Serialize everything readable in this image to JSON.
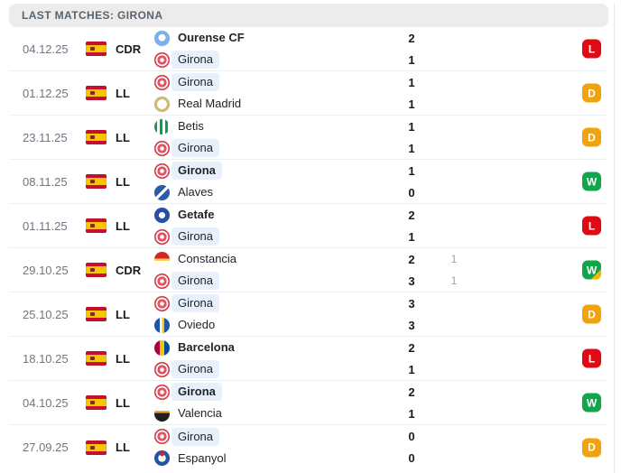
{
  "header": {
    "title": "LAST MATCHES: GIRONA"
  },
  "colors": {
    "win_badge": "#11a64a",
    "draw_badge": "#f0a30b",
    "loss_badge": "#e00a14",
    "extra_time_corner": "#f0b40b",
    "girona_highlight": "#e8f1fb",
    "header_bg": "#ececec"
  },
  "icons": {
    "flag": "spain-flag"
  },
  "matches": [
    {
      "date": "04.12.25",
      "competition": "CDR",
      "result": "L",
      "extra_time": false,
      "home": {
        "name": "Ourense CF",
        "logo": "ourense",
        "bold": true,
        "highlight": false,
        "score": "2",
        "score2": ""
      },
      "away": {
        "name": "Girona",
        "logo": "girona",
        "bold": false,
        "highlight": true,
        "score": "1",
        "score2": ""
      }
    },
    {
      "date": "01.12.25",
      "competition": "LL",
      "result": "D",
      "extra_time": false,
      "home": {
        "name": "Girona",
        "logo": "girona",
        "bold": false,
        "highlight": true,
        "score": "1",
        "score2": ""
      },
      "away": {
        "name": "Real Madrid",
        "logo": "realmadrid",
        "bold": false,
        "highlight": false,
        "score": "1",
        "score2": ""
      }
    },
    {
      "date": "23.11.25",
      "competition": "LL",
      "result": "D",
      "extra_time": false,
      "home": {
        "name": "Betis",
        "logo": "betis",
        "bold": false,
        "highlight": false,
        "score": "1",
        "score2": ""
      },
      "away": {
        "name": "Girona",
        "logo": "girona",
        "bold": false,
        "highlight": true,
        "score": "1",
        "score2": ""
      }
    },
    {
      "date": "08.11.25",
      "competition": "LL",
      "result": "W",
      "extra_time": false,
      "home": {
        "name": "Girona",
        "logo": "girona",
        "bold": true,
        "highlight": true,
        "score": "1",
        "score2": ""
      },
      "away": {
        "name": "Alaves",
        "logo": "alaves",
        "bold": false,
        "highlight": false,
        "score": "0",
        "score2": ""
      }
    },
    {
      "date": "01.11.25",
      "competition": "LL",
      "result": "L",
      "extra_time": false,
      "home": {
        "name": "Getafe",
        "logo": "getafe",
        "bold": true,
        "highlight": false,
        "score": "2",
        "score2": ""
      },
      "away": {
        "name": "Girona",
        "logo": "girona",
        "bold": false,
        "highlight": true,
        "score": "1",
        "score2": ""
      }
    },
    {
      "date": "29.10.25",
      "competition": "CDR",
      "result": "W",
      "extra_time": true,
      "home": {
        "name": "Constancia",
        "logo": "constancia",
        "bold": false,
        "highlight": false,
        "score": "2",
        "score2": "1"
      },
      "away": {
        "name": "Girona",
        "logo": "girona",
        "bold": false,
        "highlight": true,
        "score": "3",
        "score2": "1"
      }
    },
    {
      "date": "25.10.25",
      "competition": "LL",
      "result": "D",
      "extra_time": false,
      "home": {
        "name": "Girona",
        "logo": "girona",
        "bold": false,
        "highlight": true,
        "score": "3",
        "score2": ""
      },
      "away": {
        "name": "Oviedo",
        "logo": "oviedo",
        "bold": false,
        "highlight": false,
        "score": "3",
        "score2": ""
      }
    },
    {
      "date": "18.10.25",
      "competition": "LL",
      "result": "L",
      "extra_time": false,
      "home": {
        "name": "Barcelona",
        "logo": "barcelona",
        "bold": true,
        "highlight": false,
        "score": "2",
        "score2": ""
      },
      "away": {
        "name": "Girona",
        "logo": "girona",
        "bold": false,
        "highlight": true,
        "score": "1",
        "score2": ""
      }
    },
    {
      "date": "04.10.25",
      "competition": "LL",
      "result": "W",
      "extra_time": false,
      "home": {
        "name": "Girona",
        "logo": "girona",
        "bold": true,
        "highlight": true,
        "score": "2",
        "score2": ""
      },
      "away": {
        "name": "Valencia",
        "logo": "valencia",
        "bold": false,
        "highlight": false,
        "score": "1",
        "score2": ""
      }
    },
    {
      "date": "27.09.25",
      "competition": "LL",
      "result": "D",
      "extra_time": false,
      "home": {
        "name": "Girona",
        "logo": "girona",
        "bold": false,
        "highlight": true,
        "score": "0",
        "score2": ""
      },
      "away": {
        "name": "Espanyol",
        "logo": "espanyol",
        "bold": false,
        "highlight": false,
        "score": "0",
        "score2": ""
      }
    }
  ]
}
